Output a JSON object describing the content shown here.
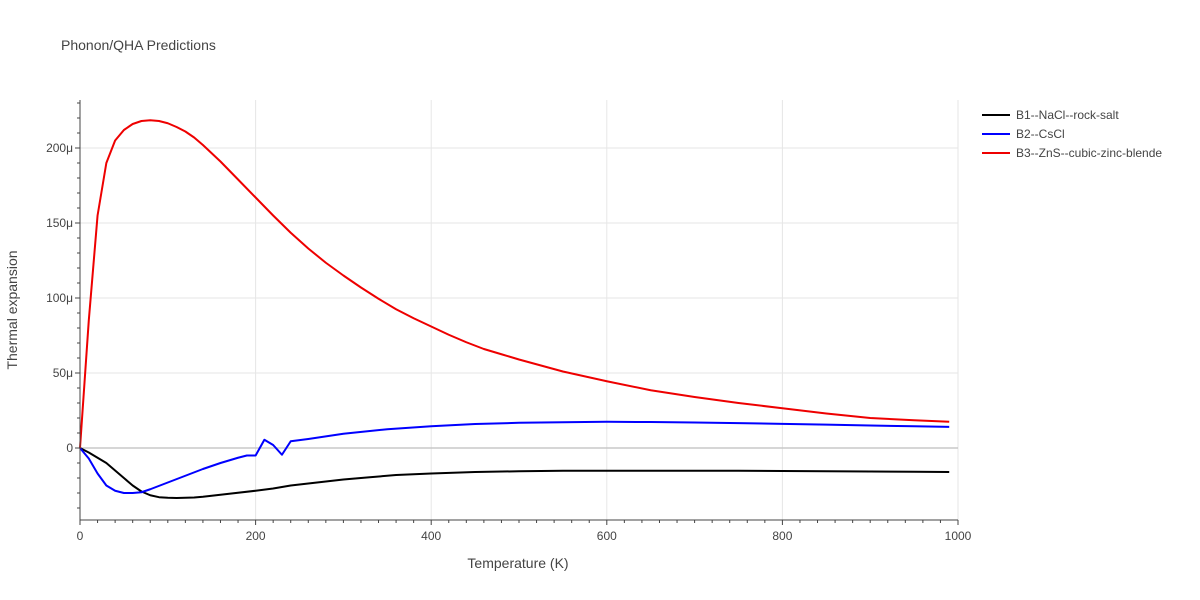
{
  "chart_data": {
    "type": "line",
    "title": "Phonon/QHA Predictions",
    "xlabel": "Temperature (K)",
    "ylabel": "Thermal expansion",
    "xlim": [
      0,
      1000
    ],
    "ylim": [
      -4.8e-05,
      0.000232
    ],
    "x_ticks": [
      0,
      200,
      400,
      600,
      800,
      1000
    ],
    "x_tick_labels": [
      "0",
      "200",
      "400",
      "600",
      "800",
      "1000"
    ],
    "y_ticks": [
      0,
      5e-05,
      0.0001,
      0.00015,
      0.0002
    ],
    "y_tick_labels": [
      "0",
      "50μ",
      "100μ",
      "150μ",
      "200μ"
    ],
    "grid": true,
    "legend_position": "top-right",
    "series": [
      {
        "name": "B1--NaCl--rock-salt",
        "color": "#000000",
        "x": [
          0,
          10,
          20,
          30,
          40,
          50,
          60,
          70,
          80,
          90,
          100,
          110,
          120,
          130,
          140,
          150,
          170,
          200,
          220,
          240,
          270,
          300,
          330,
          360,
          400,
          450,
          500,
          550,
          600,
          650,
          700,
          750,
          800,
          850,
          900,
          950,
          990
        ],
        "y": [
          0,
          -3e-06,
          -6.5e-06,
          -1e-05,
          -1.5e-05,
          -2e-05,
          -2.5e-05,
          -2.9e-05,
          -3.15e-05,
          -3.28e-05,
          -3.32e-05,
          -3.33e-05,
          -3.32e-05,
          -3.3e-05,
          -3.25e-05,
          -3.18e-05,
          -3.05e-05,
          -2.85e-05,
          -2.7e-05,
          -2.5e-05,
          -2.3e-05,
          -2.1e-05,
          -1.95e-05,
          -1.8e-05,
          -1.7e-05,
          -1.6e-05,
          -1.55e-05,
          -1.52e-05,
          -1.52e-05,
          -1.52e-05,
          -1.52e-05,
          -1.52e-05,
          -1.53e-05,
          -1.55e-05,
          -1.57e-05,
          -1.58e-05,
          -1.6e-05
        ]
      },
      {
        "name": "B2--CsCl",
        "color": "#0000ff",
        "x": [
          0,
          10,
          20,
          30,
          40,
          50,
          60,
          70,
          80,
          100,
          120,
          140,
          160,
          180,
          190,
          200,
          210,
          220,
          230,
          240,
          260,
          300,
          350,
          400,
          450,
          500,
          550,
          600,
          650,
          700,
          750,
          800,
          850,
          900,
          950,
          990
        ],
        "y": [
          0,
          -7e-06,
          -1.7e-05,
          -2.5e-05,
          -2.85e-05,
          -3e-05,
          -3e-05,
          -2.95e-05,
          -2.75e-05,
          -2.3e-05,
          -1.85e-05,
          -1.4e-05,
          -1e-05,
          -6.5e-06,
          -5e-06,
          -5e-06,
          5.5e-06,
          2e-06,
          -4.5e-06,
          4.5e-06,
          6e-06,
          9.5e-06,
          1.25e-05,
          1.45e-05,
          1.6e-05,
          1.68e-05,
          1.72e-05,
          1.75e-05,
          1.73e-05,
          1.7e-05,
          1.66e-05,
          1.61e-05,
          1.56e-05,
          1.5e-05,
          1.45e-05,
          1.41e-05
        ]
      },
      {
        "name": "B3--ZnS--cubic-zinc-blende",
        "color": "#ee0000",
        "x": [
          0,
          10,
          20,
          30,
          40,
          50,
          60,
          70,
          80,
          90,
          100,
          110,
          120,
          130,
          140,
          150,
          160,
          180,
          200,
          220,
          240,
          260,
          280,
          300,
          320,
          340,
          360,
          380,
          400,
          420,
          440,
          460,
          480,
          500,
          550,
          600,
          650,
          700,
          750,
          800,
          850,
          900,
          950,
          990
        ],
        "y": [
          0,
          8.5e-05,
          0.000155,
          0.00019,
          0.000205,
          0.000212,
          0.000216,
          0.000218,
          0.0002185,
          0.000218,
          0.0002165,
          0.000214,
          0.000211,
          0.000207,
          0.000202,
          0.0001965,
          0.000191,
          0.000179,
          0.000167,
          0.000155,
          0.0001435,
          0.000133,
          0.0001235,
          0.000115,
          0.000107,
          9.95e-05,
          9.25e-05,
          8.65e-05,
          8.1e-05,
          7.55e-05,
          7.05e-05,
          6.6e-05,
          6.25e-05,
          5.9e-05,
          5.1e-05,
          4.45e-05,
          3.85e-05,
          3.4e-05,
          3e-05,
          2.65e-05,
          2.3e-05,
          2e-05,
          1.85e-05,
          1.75e-05
        ]
      }
    ]
  }
}
